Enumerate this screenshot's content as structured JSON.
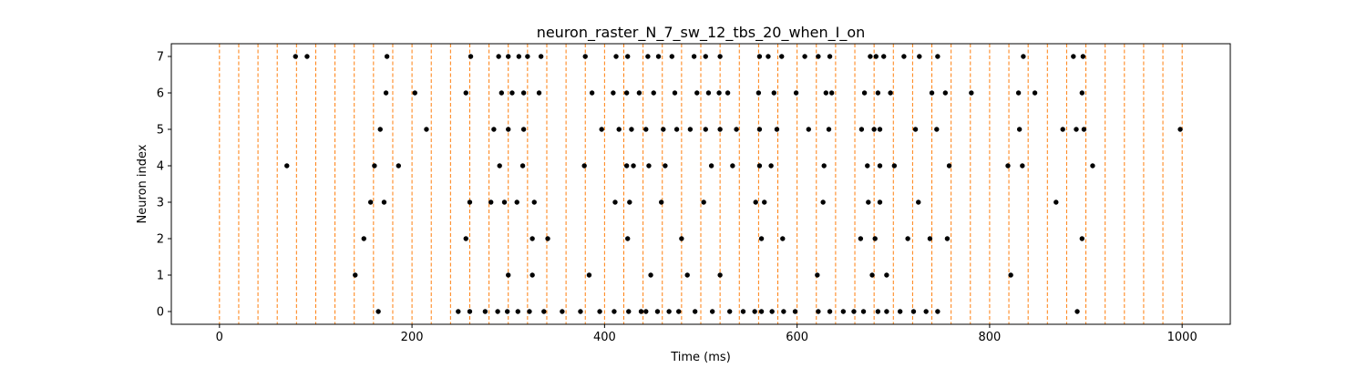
{
  "chart_data": {
    "type": "scatter",
    "title": "neuron_raster_N_7_sw_12_tbs_20_when_I_on",
    "xlabel": "Time (ms)",
    "ylabel": "Neuron index",
    "xlim": [
      -50,
      1050
    ],
    "ylim": [
      -0.35,
      7.35
    ],
    "x_ticks": [
      0,
      200,
      400,
      600,
      800,
      1000
    ],
    "y_ticks": [
      0,
      1,
      2,
      3,
      4,
      5,
      6,
      7
    ],
    "grid": false,
    "marker_color": "#000000",
    "event_line_color": "#ff7f0e",
    "event_lines_ms": [
      0,
      20,
      40,
      60,
      80,
      100,
      120,
      140,
      160,
      180,
      200,
      220,
      240,
      260,
      280,
      300,
      320,
      340,
      360,
      380,
      400,
      420,
      440,
      460,
      480,
      500,
      520,
      540,
      560,
      580,
      600,
      620,
      640,
      660,
      680,
      700,
      720,
      740,
      760,
      780,
      800,
      820,
      840,
      860,
      880,
      900,
      920,
      940,
      960,
      980,
      1000
    ],
    "spikes": [
      {
        "neuron": 0,
        "times": [
          165,
          248,
          260,
          276,
          289,
          299,
          310,
          322,
          337,
          356,
          375,
          395,
          410,
          425,
          438,
          443,
          455,
          467,
          477,
          494,
          512,
          530,
          544,
          556,
          563,
          574,
          586,
          598,
          622,
          634,
          648,
          659,
          669,
          684,
          693,
          707,
          721,
          734,
          746,
          891
        ]
      },
      {
        "neuron": 1,
        "times": [
          141,
          300,
          325,
          384,
          448,
          486,
          520,
          621,
          678,
          693,
          822
        ]
      },
      {
        "neuron": 2,
        "times": [
          150,
          256,
          325,
          341,
          424,
          480,
          563,
          585,
          666,
          681,
          715,
          738,
          756,
          896
        ]
      },
      {
        "neuron": 3,
        "times": [
          157,
          171,
          260,
          282,
          296,
          309,
          327,
          411,
          426,
          459,
          503,
          557,
          566,
          627,
          674,
          686,
          726,
          869
        ]
      },
      {
        "neuron": 4,
        "times": [
          70,
          161,
          186,
          291,
          315,
          379,
          423,
          430,
          446,
          463,
          511,
          533,
          561,
          573,
          628,
          673,
          686,
          701,
          758,
          819,
          834,
          907
        ]
      },
      {
        "neuron": 5,
        "times": [
          167,
          215,
          285,
          300,
          316,
          397,
          415,
          428,
          443,
          461,
          475,
          489,
          505,
          520,
          537,
          561,
          579,
          612,
          633,
          667,
          680,
          686,
          723,
          745,
          831,
          876,
          890,
          898,
          998
        ]
      },
      {
        "neuron": 6,
        "times": [
          173,
          203,
          256,
          293,
          304,
          316,
          332,
          387,
          409,
          423,
          436,
          451,
          473,
          496,
          508,
          519,
          528,
          560,
          576,
          599,
          630,
          636,
          670,
          684,
          697,
          740,
          754,
          781,
          830,
          847,
          896
        ]
      },
      {
        "neuron": 7,
        "times": [
          79,
          91,
          174,
          261,
          290,
          300,
          311,
          320,
          334,
          380,
          412,
          424,
          445,
          456,
          470,
          493,
          505,
          520,
          561,
          570,
          584,
          608,
          622,
          634,
          676,
          682,
          690,
          711,
          727,
          746,
          835,
          887,
          897
        ]
      }
    ]
  }
}
